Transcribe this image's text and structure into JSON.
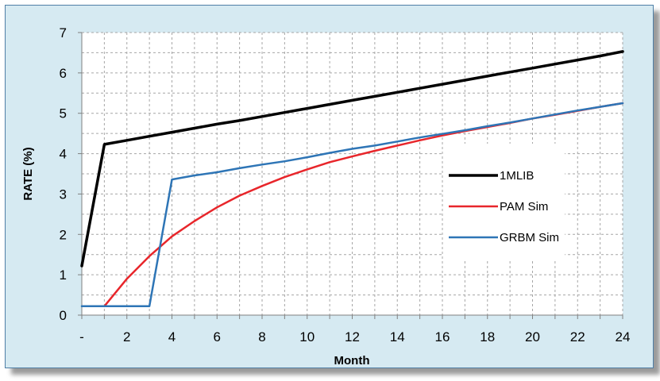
{
  "chart_data": {
    "type": "line",
    "title": "",
    "xlabel": "Month",
    "ylabel": "RATE (%)",
    "xlim": [
      0,
      24
    ],
    "ylim": [
      0,
      7
    ],
    "grid": true,
    "legend_position": "right",
    "x_ticks": [
      {
        "value": 0,
        "label": "-"
      },
      {
        "value": 2,
        "label": "2"
      },
      {
        "value": 4,
        "label": "4"
      },
      {
        "value": 6,
        "label": "6"
      },
      {
        "value": 8,
        "label": "8"
      },
      {
        "value": 10,
        "label": "10"
      },
      {
        "value": 12,
        "label": "12"
      },
      {
        "value": 14,
        "label": "14"
      },
      {
        "value": 16,
        "label": "16"
      },
      {
        "value": 18,
        "label": "18"
      },
      {
        "value": 20,
        "label": "20"
      },
      {
        "value": 22,
        "label": "22"
      },
      {
        "value": 24,
        "label": "24"
      }
    ],
    "y_ticks": [
      0,
      1,
      2,
      3,
      4,
      5,
      6,
      7
    ],
    "series": [
      {
        "name": "1MLIB",
        "color": "#000000",
        "points": [
          [
            0,
            1.22
          ],
          [
            1,
            4.23
          ],
          [
            2,
            4.33
          ],
          [
            3,
            4.43
          ],
          [
            4,
            4.53
          ],
          [
            5,
            4.63
          ],
          [
            6,
            4.73
          ],
          [
            7,
            4.82
          ],
          [
            8,
            4.92
          ],
          [
            9,
            5.02
          ],
          [
            10,
            5.12
          ],
          [
            11,
            5.22
          ],
          [
            12,
            5.32
          ],
          [
            13,
            5.42
          ],
          [
            14,
            5.52
          ],
          [
            15,
            5.62
          ],
          [
            16,
            5.72
          ],
          [
            17,
            5.82
          ],
          [
            18,
            5.92
          ],
          [
            19,
            6.02
          ],
          [
            20,
            6.12
          ],
          [
            21,
            6.22
          ],
          [
            22,
            6.32
          ],
          [
            23,
            6.42
          ],
          [
            24,
            6.53
          ]
        ]
      },
      {
        "name": "PAM Sim",
        "color": "#e8262b",
        "points": [
          [
            1,
            0.22
          ],
          [
            2,
            0.9
          ],
          [
            3,
            1.46
          ],
          [
            4,
            1.95
          ],
          [
            5,
            2.33
          ],
          [
            6,
            2.67
          ],
          [
            7,
            2.96
          ],
          [
            8,
            3.2
          ],
          [
            9,
            3.42
          ],
          [
            10,
            3.61
          ],
          [
            11,
            3.79
          ],
          [
            12,
            3.93
          ],
          [
            13,
            4.07
          ],
          [
            14,
            4.2
          ],
          [
            15,
            4.33
          ],
          [
            16,
            4.45
          ],
          [
            17,
            4.56
          ],
          [
            18,
            4.66
          ],
          [
            19,
            4.76
          ],
          [
            20,
            4.87
          ],
          [
            21,
            4.96
          ],
          [
            22,
            5.06
          ],
          [
            23,
            5.16
          ],
          [
            24,
            5.25
          ]
        ]
      },
      {
        "name": "GRBM Sim",
        "color": "#2e75b6",
        "points": [
          [
            0,
            0.22
          ],
          [
            1,
            0.22
          ],
          [
            2,
            0.22
          ],
          [
            3,
            0.22
          ],
          [
            4,
            3.36
          ],
          [
            5,
            3.46
          ],
          [
            6,
            3.54
          ],
          [
            7,
            3.64
          ],
          [
            8,
            3.73
          ],
          [
            9,
            3.81
          ],
          [
            10,
            3.91
          ],
          [
            11,
            4.02
          ],
          [
            12,
            4.12
          ],
          [
            13,
            4.2
          ],
          [
            14,
            4.3
          ],
          [
            15,
            4.4
          ],
          [
            16,
            4.49
          ],
          [
            17,
            4.58
          ],
          [
            18,
            4.68
          ],
          [
            19,
            4.77
          ],
          [
            20,
            4.87
          ],
          [
            21,
            4.97
          ],
          [
            22,
            5.07
          ],
          [
            23,
            5.16
          ],
          [
            24,
            5.25
          ]
        ]
      }
    ]
  }
}
